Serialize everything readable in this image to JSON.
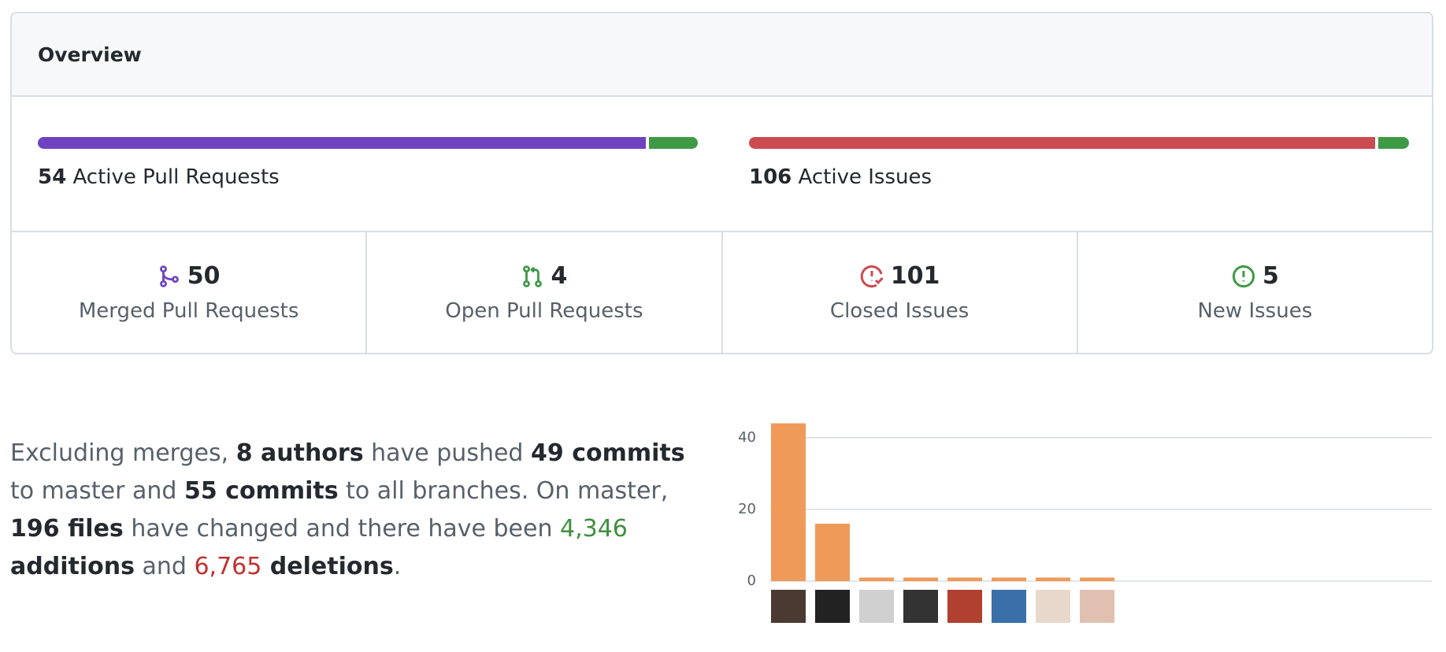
{
  "header": {
    "title": "Overview"
  },
  "pull_requests": {
    "active": 54,
    "active_label": "Active Pull Requests",
    "merged": {
      "count": 50,
      "label": "Merged Pull Requests",
      "color": "#6f42c1"
    },
    "open": {
      "count": 4,
      "label": "Open Pull Requests",
      "color": "#3f9a46"
    }
  },
  "issues": {
    "active": 106,
    "active_label": "Active Issues",
    "closed": {
      "count": 101,
      "label": "Closed Issues",
      "color": "#cb4b51"
    },
    "new": {
      "count": 5,
      "label": "New Issues",
      "color": "#3f9a46"
    }
  },
  "commits_text": [
    {
      "text": "Excluding merges, "
    },
    {
      "text": "8 authors",
      "style": "bold"
    },
    {
      "text": " have pushed "
    },
    {
      "text": "49 commits",
      "style": "bold"
    },
    {
      "text": " to master and "
    },
    {
      "text": "55 commits",
      "style": "bold"
    },
    {
      "text": " to all branches. On master, "
    },
    {
      "text": "196 files",
      "style": "bold"
    },
    {
      "text": " have changed and there have been "
    },
    {
      "text": "4,346",
      "style": "added"
    },
    {
      "text": " additions",
      "style": "bold"
    },
    {
      "text": " and "
    },
    {
      "text": "6,765",
      "style": "deleted"
    },
    {
      "text": " deletions",
      "style": "bold"
    },
    {
      "text": "."
    }
  ],
  "chart_data": {
    "type": "bar",
    "values": [
      44,
      16,
      1,
      1,
      1,
      1,
      1,
      1
    ],
    "color": "#f09a5a",
    "ylim": [
      0,
      45
    ],
    "yticks": [
      0,
      20,
      40
    ],
    "grid": true
  }
}
